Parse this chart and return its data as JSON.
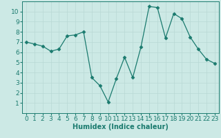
{
  "x": [
    0,
    1,
    2,
    3,
    4,
    5,
    6,
    7,
    8,
    9,
    10,
    11,
    12,
    13,
    14,
    15,
    16,
    17,
    18,
    19,
    20,
    21,
    22,
    23
  ],
  "y": [
    7.0,
    6.8,
    6.6,
    6.1,
    6.3,
    7.6,
    7.7,
    8.0,
    3.5,
    2.7,
    1.1,
    3.4,
    5.5,
    3.5,
    6.5,
    10.5,
    10.4,
    7.4,
    9.8,
    9.3,
    7.5,
    6.3,
    5.3,
    4.9
  ],
  "xlabel": "Humidex (Indice chaleur)",
  "ylim": [
    0,
    11
  ],
  "xlim": [
    -0.5,
    23.5
  ],
  "yticks": [
    1,
    2,
    3,
    4,
    5,
    6,
    7,
    8,
    9,
    10
  ],
  "xticks": [
    0,
    1,
    2,
    3,
    4,
    5,
    6,
    7,
    8,
    9,
    10,
    11,
    12,
    13,
    14,
    15,
    16,
    17,
    18,
    19,
    20,
    21,
    22,
    23
  ],
  "line_color": "#1a7a6e",
  "marker": "D",
  "marker_size": 2.5,
  "bg_color": "#cce9e5",
  "grid_color": "#b8d8d4",
  "plot_bg": "#cce9e5",
  "xlabel_fontsize": 7,
  "tick_fontsize": 6.5
}
